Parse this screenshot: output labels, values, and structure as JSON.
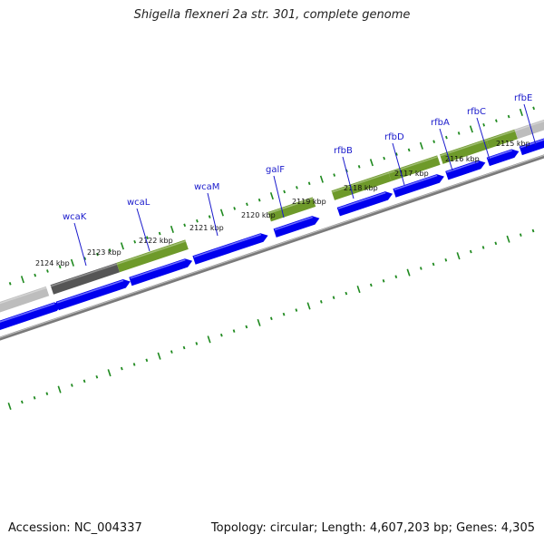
{
  "title": "Shigella flexneri 2a str. 301, complete genome",
  "footer": {
    "accession": "Accession: NC_004337",
    "summary": "Topology: circular; Length: 4,607,203 bp; Genes: 4,305"
  },
  "colors": {
    "gene_label": "#1a1acc",
    "tick": "#1f8a1f",
    "cds_arrow": "#0000ee",
    "cog_green": "#6e9a2a",
    "cog_dark": "#555555",
    "cog_light": "#bdbdbd",
    "backbone": "#7a7a7a"
  },
  "kbp_ticks": [
    {
      "label": "2115 kbp"
    },
    {
      "label": "2116 kbp"
    },
    {
      "label": "2117 kbp"
    },
    {
      "label": "2118 kbp"
    },
    {
      "label": "2119 kbp"
    },
    {
      "label": "2120 kbp"
    },
    {
      "label": "2121 kbp"
    },
    {
      "label": "2122 kbp"
    },
    {
      "label": "2123 kbp"
    },
    {
      "label": "2124 kbp"
    }
  ],
  "genes": [
    {
      "name": "rfbE"
    },
    {
      "name": "rfbC"
    },
    {
      "name": "rfbA"
    },
    {
      "name": "rfbD"
    },
    {
      "name": "rfbB"
    },
    {
      "name": "galF"
    },
    {
      "name": "wcaM"
    },
    {
      "name": "wcaL"
    },
    {
      "name": "wcaK"
    }
  ]
}
